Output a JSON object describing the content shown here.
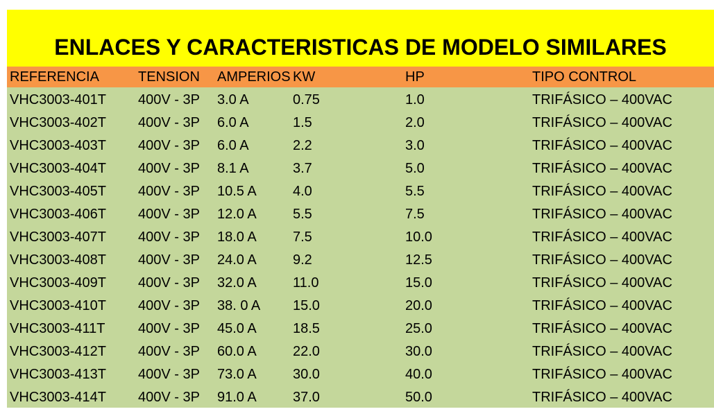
{
  "title": "ENLACES Y CARACTERISTICAS DE MODELO SIMILARES",
  "table": {
    "header": [
      "REFERENCIA",
      "TENSION",
      "AMPERIOS",
      "KW",
      "HP",
      "TIPO CONTROL"
    ],
    "rows": [
      [
        "VHC3003-401T",
        "400V - 3P",
        "3.0 A",
        "0.75",
        "1.0",
        "TRIFÁSICO – 400VAC"
      ],
      [
        "VHC3003-402T",
        "400V - 3P",
        "6.0 A",
        "1.5",
        "2.0",
        "TRIFÁSICO – 400VAC"
      ],
      [
        "VHC3003-403T",
        "400V - 3P",
        "6.0 A",
        "2.2",
        "3.0",
        "TRIFÁSICO – 400VAC"
      ],
      [
        "VHC3003-404T",
        "400V - 3P",
        "8.1 A",
        "3.7",
        "5.0",
        "TRIFÁSICO – 400VAC"
      ],
      [
        "VHC3003-405T",
        "400V - 3P",
        "10.5 A",
        "4.0",
        "5.5",
        "TRIFÁSICO – 400VAC"
      ],
      [
        "VHC3003-406T",
        "400V - 3P",
        "12.0 A",
        "5.5",
        "7.5",
        "TRIFÁSICO – 400VAC"
      ],
      [
        "VHC3003-407T",
        "400V - 3P",
        "18.0 A",
        "7.5",
        "10.0",
        "TRIFÁSICO – 400VAC"
      ],
      [
        "VHC3003-408T",
        "400V - 3P",
        "24.0 A",
        "9.2",
        "12.5",
        "TRIFÁSICO – 400VAC"
      ],
      [
        "VHC3003-409T",
        "400V - 3P",
        "32.0 A",
        "11.0",
        "15.0",
        "TRIFÁSICO – 400VAC"
      ],
      [
        "VHC3003-410T",
        "400V - 3P",
        "38. 0 A",
        "15.0",
        "20.0",
        "TRIFÁSICO – 400VAC"
      ],
      [
        "VHC3003-411T",
        "400V - 3P",
        "45.0 A",
        "18.5",
        "25.0",
        "TRIFÁSICO – 400VAC"
      ],
      [
        "VHC3003-412T",
        "400V - 3P",
        "60.0 A",
        "22.0",
        "30.0",
        "TRIFÁSICO – 400VAC"
      ],
      [
        "VHC3003-413T",
        "400V - 3P",
        "73.0 A",
        "30.0",
        "40.0",
        "TRIFÁSICO – 400VAC"
      ],
      [
        "VHC3003-414T",
        "400V - 3P",
        "91.0 A",
        "37.0",
        "50.0",
        "TRIFÁSICO – 400VAC"
      ]
    ]
  }
}
